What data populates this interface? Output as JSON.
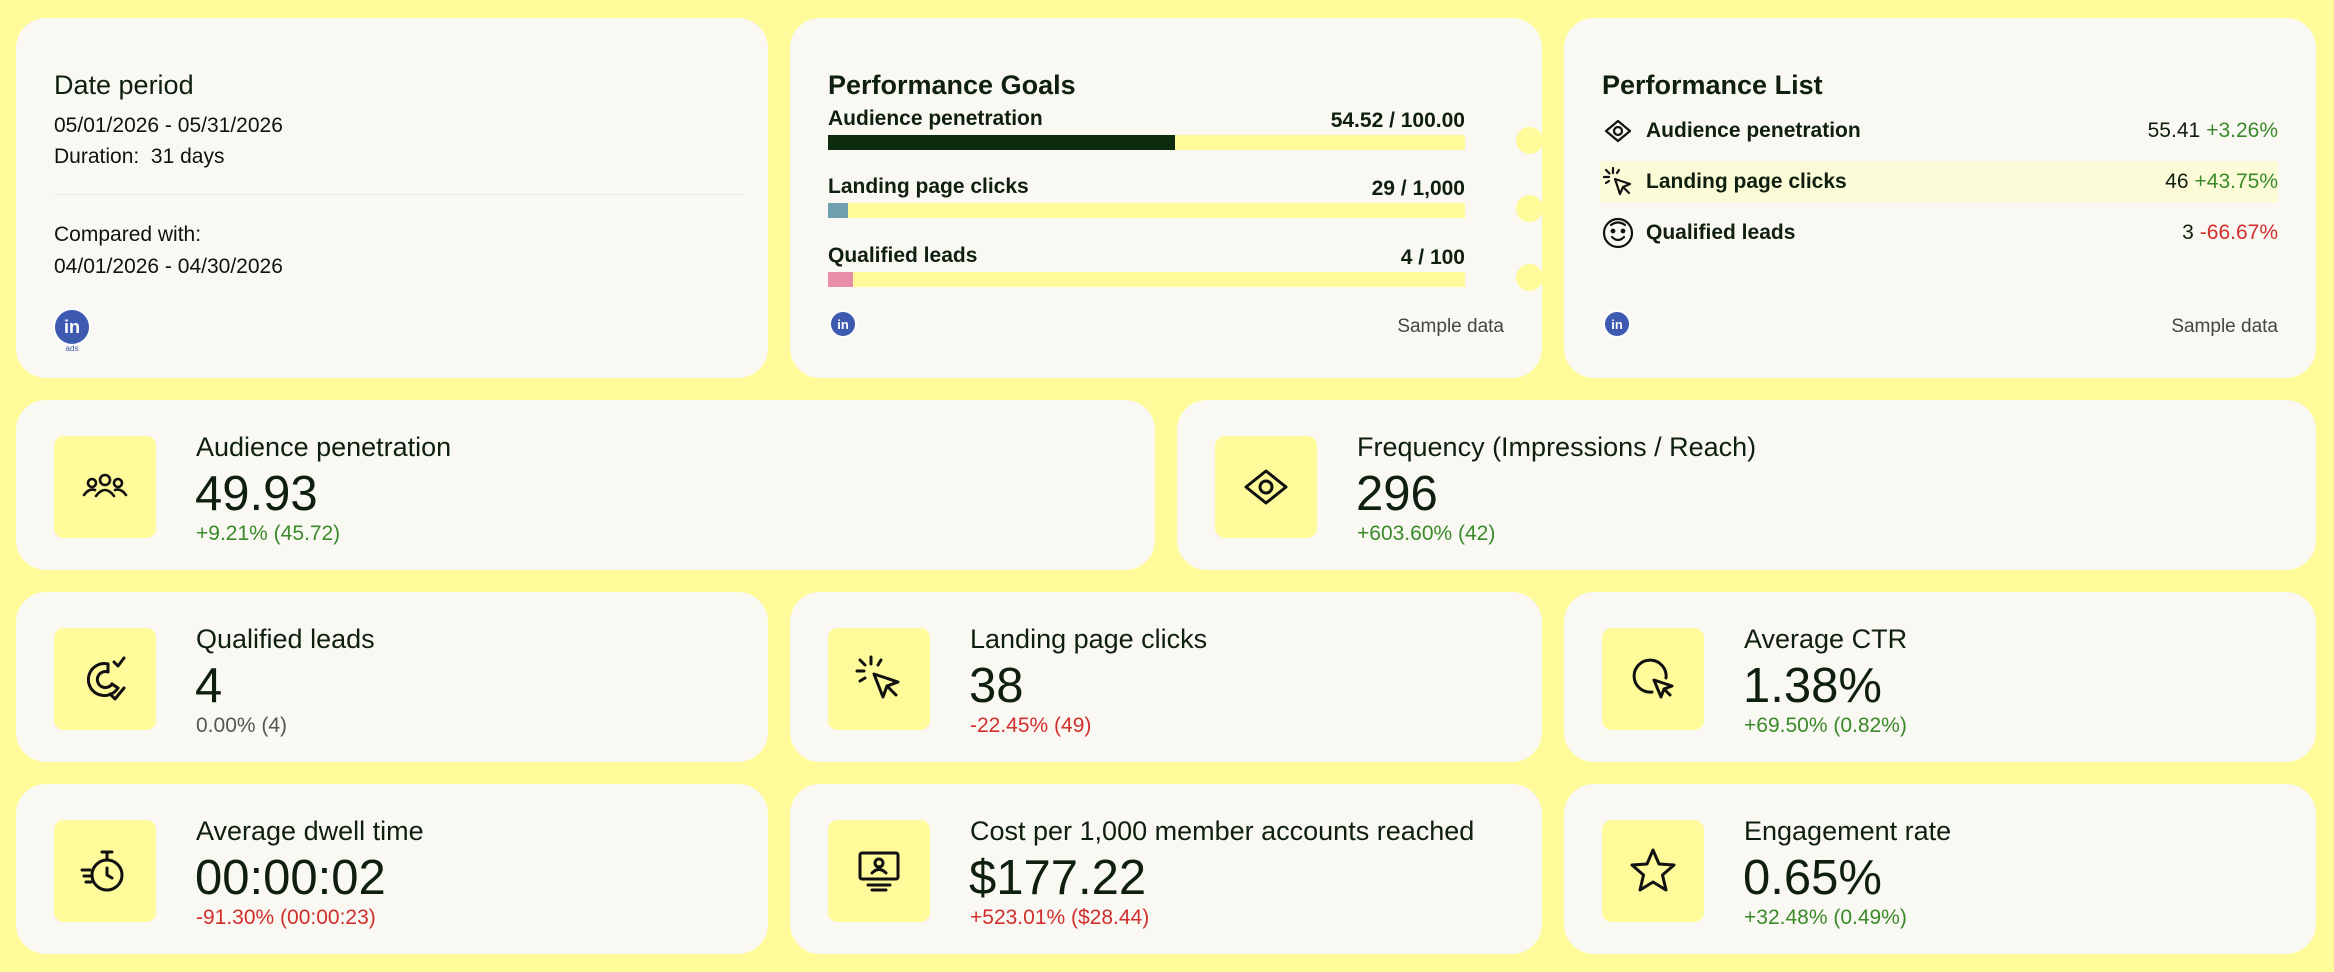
{
  "date_period": {
    "title": "Date period",
    "range": "05/01/2026 - 05/31/2026",
    "duration_label": "Duration:",
    "duration_value": "31 days",
    "compared_label": "Compared with:",
    "compared_range": "04/01/2026 - 04/30/2026",
    "logo_text": "in",
    "logo_sub": "ads"
  },
  "performance_goals": {
    "title": "Performance Goals",
    "sample_note": "Sample data",
    "goals": [
      {
        "label": "Audience penetration",
        "value_text": "54.52 / 100.00",
        "fraction": 0.5452,
        "color": "#0d2b0d"
      },
      {
        "label": "Landing page clicks",
        "value_text": "29 / 1,000",
        "fraction": 0.029,
        "color": "#6fa0b0"
      },
      {
        "label": "Qualified leads",
        "value_text": "4 / 100",
        "fraction": 0.04,
        "color": "#e78fa8"
      }
    ]
  },
  "performance_list": {
    "title": "Performance List",
    "sample_note": "Sample data",
    "items": [
      {
        "icon": "eye-icon",
        "label": "Audience penetration",
        "value": "55.41",
        "change": "+3.26%",
        "trend": "pos"
      },
      {
        "icon": "cursor-click-icon",
        "label": "Landing page clicks",
        "value": "46",
        "change": "+43.75%",
        "trend": "pos"
      },
      {
        "icon": "smiley-face-icon",
        "label": "Qualified leads",
        "value": "3",
        "change": "-66.67%",
        "trend": "neg"
      }
    ]
  },
  "kpis": {
    "audience_penetration": {
      "label": "Audience penetration",
      "value": "49.93",
      "change": "+9.21% (45.72)",
      "trend": "pos",
      "icon": "people-group-icon"
    },
    "frequency": {
      "label": "Frequency (Impressions / Reach)",
      "value": "296",
      "change": "+603.60% (42)",
      "trend": "pos",
      "icon": "eye-icon"
    },
    "qualified_leads": {
      "label": "Qualified leads",
      "value": "4",
      "change": "0.00% (4)",
      "trend": "neu",
      "icon": "magnet-check-icon"
    },
    "landing_page_clicks": {
      "label": "Landing page clicks",
      "value": "38",
      "change": "-22.45% (49)",
      "trend": "neg",
      "icon": "cursor-click-icon"
    },
    "average_ctr": {
      "label": "Average CTR",
      "value": "1.38%",
      "change": "+69.50% (0.82%)",
      "trend": "pos",
      "icon": "pointer-circle-icon"
    },
    "average_dwell_time": {
      "label": "Average dwell time",
      "value": "00:00:02",
      "change": "-91.30% (00:00:23)",
      "trend": "neg",
      "icon": "stopwatch-icon"
    },
    "cost_per_1000": {
      "label": "Cost per 1,000 member accounts reached",
      "value": "$177.22",
      "change": "+523.01% ($28.44)",
      "trend": "neg",
      "icon": "monitor-person-icon"
    },
    "engagement_rate": {
      "label": "Engagement rate",
      "value": "0.65%",
      "change": "+32.48% (0.49%)",
      "trend": "pos",
      "icon": "star-icon"
    }
  }
}
